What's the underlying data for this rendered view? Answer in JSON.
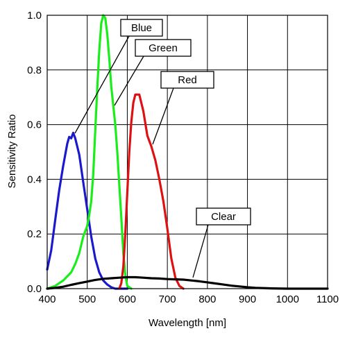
{
  "chart_data": {
    "type": "line",
    "title": "",
    "xlabel": "Wavelength [nm]",
    "ylabel": "Sensitivity Ratio",
    "xlim": [
      400,
      1100
    ],
    "ylim": [
      0,
      1.0
    ],
    "x_ticks": [
      "400",
      "500",
      "600",
      "700",
      "800",
      "900",
      "1000",
      "1100"
    ],
    "y_ticks": [
      "0.0",
      "0.2",
      "0.4",
      "0.6",
      "0.8",
      "1.0"
    ],
    "grid": true,
    "legend": "callout labels",
    "series": [
      {
        "name": "Blue",
        "color": "#1a1acc",
        "points": [
          [
            400,
            0.07
          ],
          [
            410,
            0.14
          ],
          [
            420,
            0.25
          ],
          [
            430,
            0.36
          ],
          [
            440,
            0.45
          ],
          [
            450,
            0.53
          ],
          [
            455,
            0.555
          ],
          [
            460,
            0.55
          ],
          [
            465,
            0.57
          ],
          [
            470,
            0.55
          ],
          [
            480,
            0.49
          ],
          [
            490,
            0.39
          ],
          [
            500,
            0.29
          ],
          [
            510,
            0.19
          ],
          [
            520,
            0.11
          ],
          [
            530,
            0.06
          ],
          [
            540,
            0.03
          ],
          [
            550,
            0.015
          ],
          [
            560,
            0.005
          ],
          [
            570,
            0.0
          ],
          [
            600,
            0.0
          ]
        ]
      },
      {
        "name": "Green",
        "color": "#1aee1a",
        "points": [
          [
            400,
            0.0
          ],
          [
            420,
            0.01
          ],
          [
            440,
            0.03
          ],
          [
            460,
            0.06
          ],
          [
            470,
            0.09
          ],
          [
            480,
            0.13
          ],
          [
            490,
            0.19
          ],
          [
            500,
            0.23
          ],
          [
            505,
            0.27
          ],
          [
            510,
            0.32
          ],
          [
            515,
            0.42
          ],
          [
            520,
            0.58
          ],
          [
            525,
            0.73
          ],
          [
            530,
            0.87
          ],
          [
            535,
            0.97
          ],
          [
            540,
            1.0
          ],
          [
            545,
            0.99
          ],
          [
            550,
            0.93
          ],
          [
            555,
            0.84
          ],
          [
            560,
            0.74
          ],
          [
            565,
            0.67
          ],
          [
            570,
            0.6
          ],
          [
            575,
            0.5
          ],
          [
            580,
            0.38
          ],
          [
            585,
            0.26
          ],
          [
            590,
            0.13
          ],
          [
            595,
            0.05
          ],
          [
            600,
            0.01
          ],
          [
            610,
            0.0
          ]
        ]
      },
      {
        "name": "Red",
        "color": "#dd1111",
        "points": [
          [
            580,
            0.0
          ],
          [
            585,
            0.02
          ],
          [
            590,
            0.08
          ],
          [
            595,
            0.2
          ],
          [
            600,
            0.35
          ],
          [
            605,
            0.5
          ],
          [
            610,
            0.61
          ],
          [
            615,
            0.68
          ],
          [
            620,
            0.71
          ],
          [
            630,
            0.71
          ],
          [
            640,
            0.65
          ],
          [
            650,
            0.56
          ],
          [
            660,
            0.52
          ],
          [
            670,
            0.47
          ],
          [
            680,
            0.4
          ],
          [
            690,
            0.32
          ],
          [
            700,
            0.22
          ],
          [
            710,
            0.11
          ],
          [
            720,
            0.04
          ],
          [
            730,
            0.01
          ],
          [
            740,
            0.0
          ]
        ]
      },
      {
        "name": "Clear",
        "color": "#000000",
        "points": [
          [
            400,
            0.0
          ],
          [
            420,
            0.003
          ],
          [
            440,
            0.007
          ],
          [
            460,
            0.014
          ],
          [
            480,
            0.02
          ],
          [
            500,
            0.026
          ],
          [
            520,
            0.032
          ],
          [
            540,
            0.036
          ],
          [
            560,
            0.038
          ],
          [
            580,
            0.04
          ],
          [
            600,
            0.042
          ],
          [
            620,
            0.042
          ],
          [
            640,
            0.04
          ],
          [
            660,
            0.038
          ],
          [
            680,
            0.037
          ],
          [
            700,
            0.035
          ],
          [
            720,
            0.034
          ],
          [
            740,
            0.033
          ],
          [
            760,
            0.03
          ],
          [
            780,
            0.027
          ],
          [
            800,
            0.023
          ],
          [
            820,
            0.019
          ],
          [
            840,
            0.015
          ],
          [
            860,
            0.011
          ],
          [
            880,
            0.008
          ],
          [
            900,
            0.005
          ],
          [
            920,
            0.003
          ],
          [
            940,
            0.002
          ],
          [
            960,
            0.001
          ],
          [
            1000,
            0.0
          ],
          [
            1100,
            0.0
          ]
        ]
      }
    ]
  }
}
